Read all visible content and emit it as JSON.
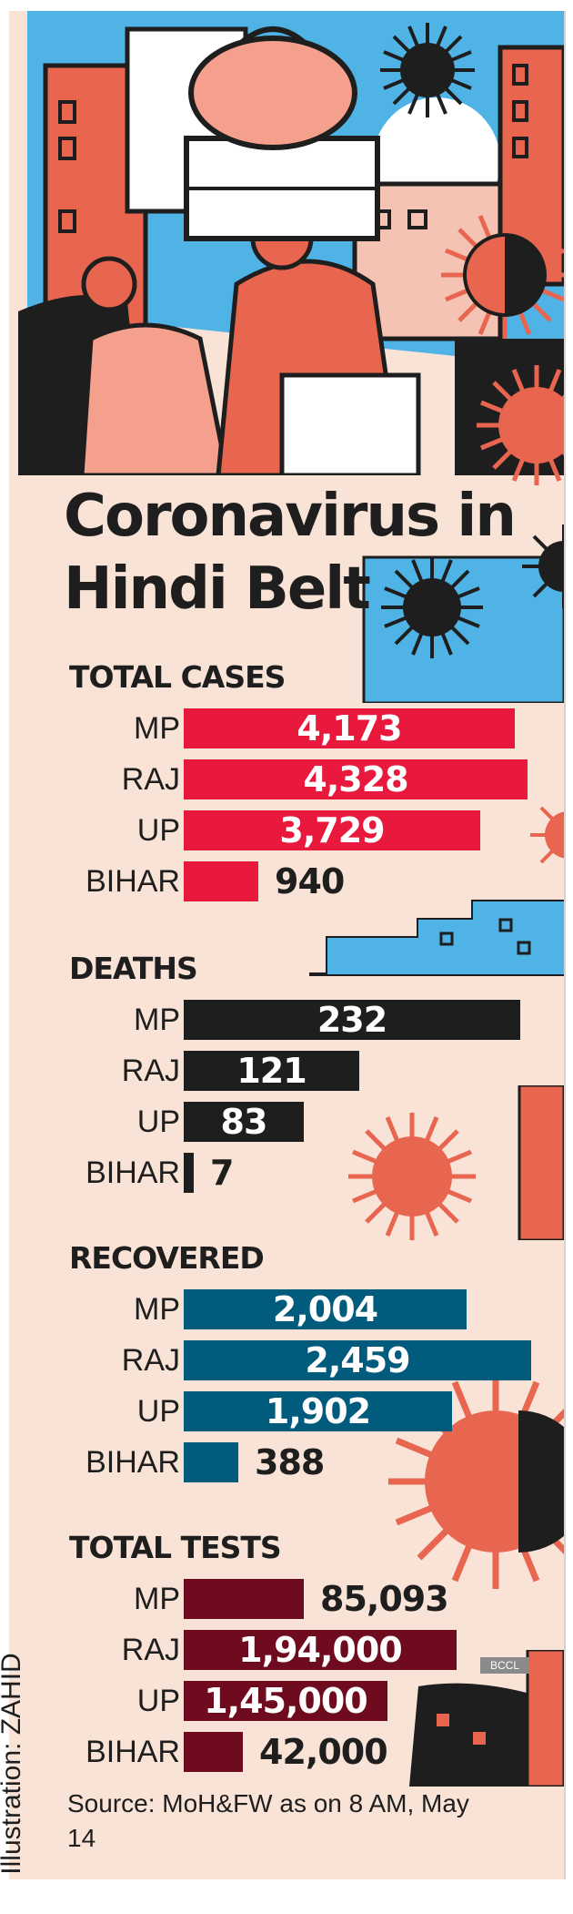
{
  "title": "Coronavirus in Hindi Belt",
  "colors": {
    "background": "#f9e3d6",
    "cases": "#e8193c",
    "deaths": "#1e1e1e",
    "recovered": "#005b7d",
    "tests": "#6f0b1e"
  },
  "chart_data": [
    {
      "type": "bar",
      "orientation": "horizontal",
      "title": "TOTAL CASES",
      "categories": [
        "MP",
        "RAJ",
        "UP",
        "BIHAR"
      ],
      "values": [
        4173,
        4328,
        3729,
        940
      ],
      "value_labels": [
        "4,173",
        "4,328",
        "3,729",
        "940"
      ],
      "color": "#e8193c"
    },
    {
      "type": "bar",
      "orientation": "horizontal",
      "title": "DEATHS",
      "categories": [
        "MP",
        "RAJ",
        "UP",
        "BIHAR"
      ],
      "values": [
        232,
        121,
        83,
        7
      ],
      "value_labels": [
        "232",
        "121",
        "83",
        "7"
      ],
      "color": "#1e1e1e"
    },
    {
      "type": "bar",
      "orientation": "horizontal",
      "title": "RECOVERED",
      "categories": [
        "MP",
        "RAJ",
        "UP",
        "BIHAR"
      ],
      "values": [
        2004,
        2459,
        1902,
        388
      ],
      "value_labels": [
        "2,004",
        "2,459",
        "1,902",
        "388"
      ],
      "color": "#005b7d"
    },
    {
      "type": "bar",
      "orientation": "horizontal",
      "title": "TOTAL TESTS",
      "categories": [
        "MP",
        "RAJ",
        "UP",
        "BIHAR"
      ],
      "values": [
        85093,
        194000,
        145000,
        42000
      ],
      "value_labels": [
        "85,093",
        "1,94,000",
        "1,45,000",
        "42,000"
      ],
      "color": "#6f0b1e"
    }
  ],
  "source": "Source: MoH&FW as on 8 AM, May 14",
  "credit": "Illustration: ZAHID",
  "watermark": "BCCL",
  "icons": [
    "migrant-workers-illustration",
    "coronavirus-icon",
    "building-icon"
  ]
}
